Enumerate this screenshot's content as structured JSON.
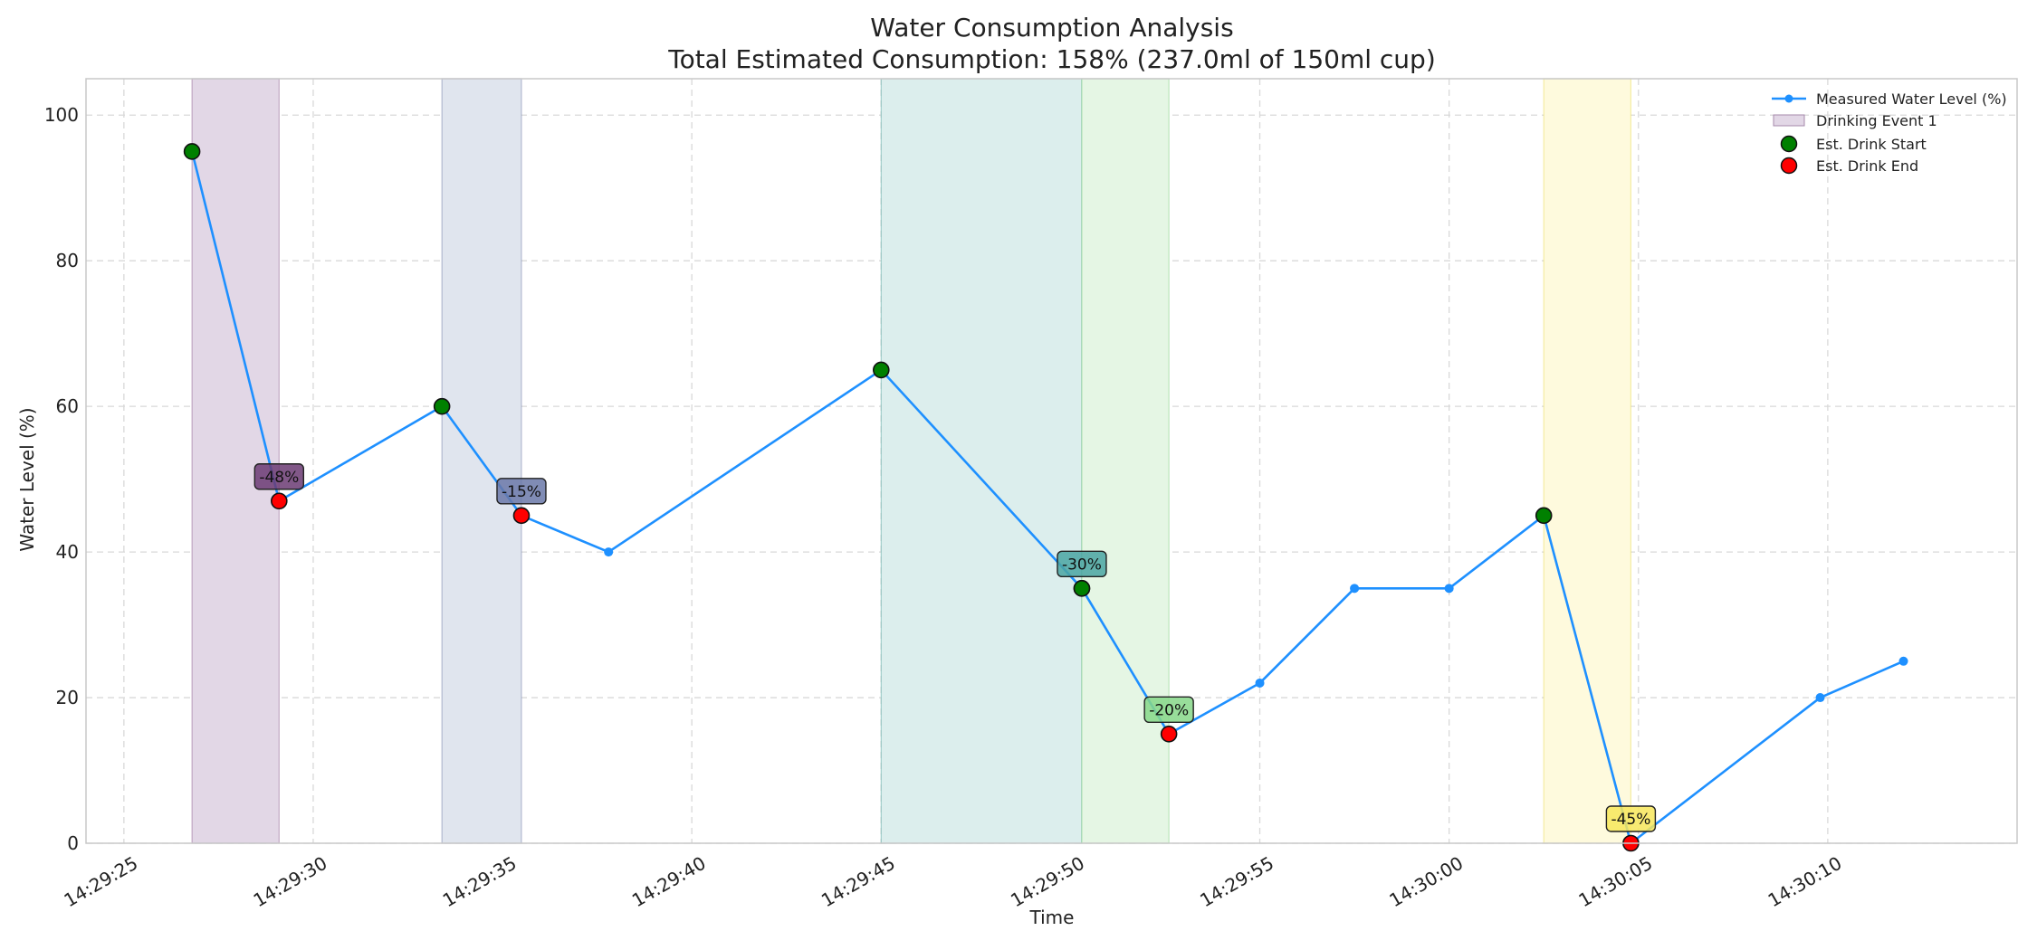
{
  "chart_data": {
    "type": "line",
    "title": "Water Consumption Analysis",
    "subtitle": "Total Estimated Consumption: 158% (237.0ml of 150ml cup)",
    "xlabel": "Time",
    "ylabel": "Water Level (%)",
    "x_range": [
      "14:29:24.0",
      "14:30:15.0"
    ],
    "ylim": [
      0,
      105
    ],
    "x_ticks": [
      "14:29:25",
      "14:29:30",
      "14:29:35",
      "14:29:40",
      "14:29:45",
      "14:29:50",
      "14:29:55",
      "14:30:00",
      "14:30:05",
      "14:30:10"
    ],
    "y_ticks": [
      0,
      20,
      40,
      60,
      80,
      100
    ],
    "grid": true,
    "legend_position": "top-right",
    "series": [
      {
        "name": "Measured Water Level (%)",
        "color": "#1e90ff",
        "points": [
          {
            "x": "14:29:26.8",
            "y": 95
          },
          {
            "x": "14:29:29.1",
            "y": 47
          },
          {
            "x": "14:29:33.4",
            "y": 60
          },
          {
            "x": "14:29:35.5",
            "y": 45
          },
          {
            "x": "14:29:37.8",
            "y": 40
          },
          {
            "x": "14:29:45.0",
            "y": 65
          },
          {
            "x": "14:29:50.3",
            "y": 35
          },
          {
            "x": "14:29:52.6",
            "y": 15
          },
          {
            "x": "14:29:55.0",
            "y": 22
          },
          {
            "x": "14:29:57.5",
            "y": 35
          },
          {
            "x": "14:30:00.0",
            "y": 35
          },
          {
            "x": "14:30:02.5",
            "y": 45
          },
          {
            "x": "14:30:04.8",
            "y": 0
          },
          {
            "x": "14:30:09.8",
            "y": 20
          },
          {
            "x": "14:30:12.0",
            "y": 25
          }
        ]
      }
    ],
    "drinking_events": [
      {
        "start": "14:29:26.8",
        "end": "14:29:29.1",
        "start_level": 95,
        "end_level": 47,
        "change": "-48%",
        "color": "#8b5a8f",
        "fill": "#e2d7e6",
        "label_bg": "#6b3b73"
      },
      {
        "start": "14:29:33.4",
        "end": "14:29:35.5",
        "start_level": 60,
        "end_level": 45,
        "change": "-15%",
        "color": "#6d7ba5",
        "fill": "#e0e5ee",
        "label_bg": "#6a78a8"
      },
      {
        "start": "14:29:45.0",
        "end": "14:29:50.3",
        "start_level": 65,
        "end_level": 35,
        "change": "-30%",
        "color": "#4c9f9a",
        "fill": "#dceeed",
        "label_bg": "#4aa4a2"
      },
      {
        "start": "14:29:50.3",
        "end": "14:29:52.6",
        "start_level": 35,
        "end_level": 15,
        "change": "-20%",
        "color": "#7acc7a",
        "fill": "#e5f6e4",
        "label_bg": "#86d788"
      },
      {
        "start": "14:30:02.5",
        "end": "14:30:04.8",
        "start_level": 45,
        "end_level": 0,
        "change": "-45%",
        "color": "#e8d94a",
        "fill": "#fefadd",
        "label_bg": "#f7e65a"
      }
    ],
    "legend": [
      {
        "label": "Measured Water Level (%)",
        "kind": "line",
        "color": "#1e90ff"
      },
      {
        "label": "Drinking Event 1",
        "kind": "patch",
        "color": "#e2d7e6"
      },
      {
        "label": "Est. Drink Start",
        "kind": "marker",
        "color": "#008000"
      },
      {
        "label": "Est. Drink End",
        "kind": "marker",
        "color": "#ff0000"
      }
    ],
    "marker_colors": {
      "start": "#008000",
      "end": "#ff0000"
    }
  }
}
